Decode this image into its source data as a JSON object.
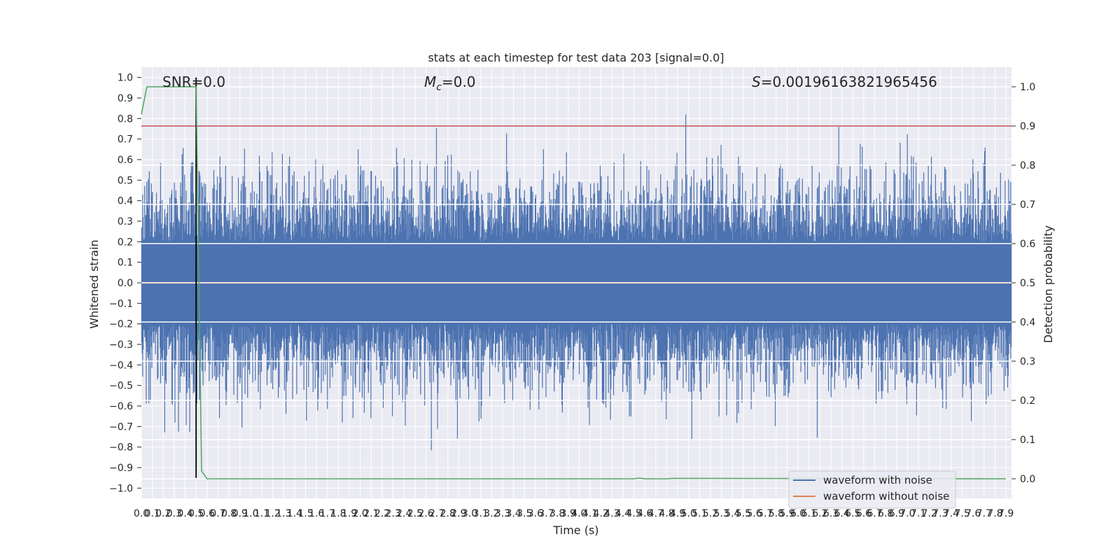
{
  "chart_data": {
    "type": "line",
    "title": "stats at each timestep for test data 203 [signal=0.0]",
    "xlabel": "Time (s)",
    "ylabel_left": "Whitened strain",
    "ylabel_right": "Detection probability",
    "annotations": {
      "snr": "SNR=0.0",
      "mc_symbol": "M",
      "mc_sub": "c",
      "mc_value": "=0.0",
      "s_symbol": "S",
      "s_value": "=0.00196163821965456"
    },
    "xlim": [
      0.0,
      7.95
    ],
    "ylim_left": [
      -1.05,
      1.05
    ],
    "ylim_right": [
      -0.05,
      1.05
    ],
    "x_ticks": [
      "0.0",
      "0.1",
      "0.2",
      "0.3",
      "0.4",
      "0.5",
      "0.6",
      "0.7",
      "0.8",
      "0.9",
      "1.0",
      "1.1",
      "1.2",
      "1.3",
      "1.4",
      "1.5",
      "1.6",
      "1.7",
      "1.8",
      "1.9",
      "2.0",
      "2.1",
      "2.2",
      "2.3",
      "2.4",
      "2.5",
      "2.6",
      "2.7",
      "2.8",
      "2.9",
      "3.0",
      "3.1",
      "3.2",
      "3.3",
      "3.4",
      "3.5",
      "3.6",
      "3.7",
      "3.8",
      "3.9",
      "4.0",
      "4.1",
      "4.2",
      "4.3",
      "4.4",
      "4.5",
      "4.6",
      "4.7",
      "4.8",
      "4.9",
      "5.0",
      "5.1",
      "5.2",
      "5.3",
      "5.4",
      "5.5",
      "5.6",
      "5.7",
      "5.8",
      "5.9",
      "6.0",
      "6.1",
      "6.2",
      "6.3",
      "6.4",
      "6.5",
      "6.6",
      "6.7",
      "6.8",
      "6.9",
      "7.0",
      "7.1",
      "7.2",
      "7.3",
      "7.4",
      "7.5",
      "7.6",
      "7.7",
      "7.8",
      "7.9"
    ],
    "y_ticks_left": [
      "−1.0",
      "−0.9",
      "−0.8",
      "−0.7",
      "−0.6",
      "−0.5",
      "−0.4",
      "−0.3",
      "−0.2",
      "−0.1",
      "0.0",
      "0.1",
      "0.2",
      "0.3",
      "0.4",
      "0.5",
      "0.6",
      "0.7",
      "0.8",
      "0.9",
      "1.0"
    ],
    "y_ticks_right": [
      "0.0",
      "0.1",
      "0.2",
      "0.3",
      "0.4",
      "0.5",
      "0.6",
      "0.7",
      "0.8",
      "0.9",
      "1.0"
    ],
    "hlines": [
      {
        "axis": "right",
        "y": 0.9,
        "color": "#c44e52"
      }
    ],
    "vlines": [
      {
        "x": 0.5,
        "ymin": -0.95,
        "ymax": 1.0,
        "color": "#000000"
      }
    ],
    "legend": {
      "position": "lower right",
      "entries": [
        {
          "label": "waveform with noise",
          "color": "#4c72b0"
        },
        {
          "label": "waveform without noise",
          "color": "#dd8452"
        }
      ]
    },
    "series": [
      {
        "name": "waveform with noise",
        "color": "#4c72b0",
        "axis": "left",
        "kind": "noise",
        "amplitude_typical": 0.45,
        "amplitude_peak": 1.0
      },
      {
        "name": "waveform without noise",
        "color": "#dd8452",
        "axis": "left",
        "kind": "constant",
        "value": 0.0
      },
      {
        "name": "detection probability",
        "color": "#55a868",
        "axis": "right",
        "x": [
          0.0,
          0.05,
          0.1,
          0.5,
          0.55,
          0.6,
          0.65,
          4.5,
          4.55,
          4.6,
          4.8,
          4.85,
          7.9
        ],
        "y": [
          0.93,
          1.0,
          1.0,
          1.0,
          0.02,
          0.0,
          0.0,
          0.0,
          0.002,
          0.0,
          0.0,
          0.001,
          0.0
        ]
      }
    ]
  }
}
